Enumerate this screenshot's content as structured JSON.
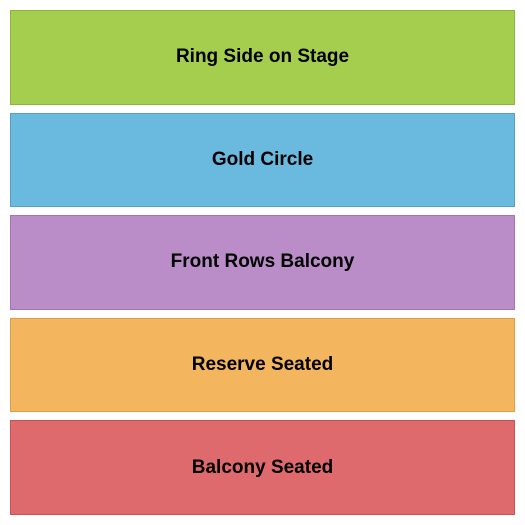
{
  "seating_chart": {
    "type": "infographic",
    "background_color": "#ffffff",
    "gap": 8,
    "label_fontsize": 19,
    "label_fontweight": "bold",
    "label_color": "#000000",
    "border_width": 1,
    "sections": [
      {
        "label": "Ring Side on Stage",
        "fill_color": "#a5ce4e",
        "border_color": "#8ab53f"
      },
      {
        "label": "Gold Circle",
        "fill_color": "#6ab9de",
        "border_color": "#4fa3cb"
      },
      {
        "label": "Front Rows Balcony",
        "fill_color": "#ba8cc8",
        "border_color": "#a574b5"
      },
      {
        "label": "Reserve Seated",
        "fill_color": "#f4b55f",
        "border_color": "#e09d42"
      },
      {
        "label": "Balcony Seated",
        "fill_color": "#de6a6d",
        "border_color": "#c95256"
      }
    ]
  }
}
